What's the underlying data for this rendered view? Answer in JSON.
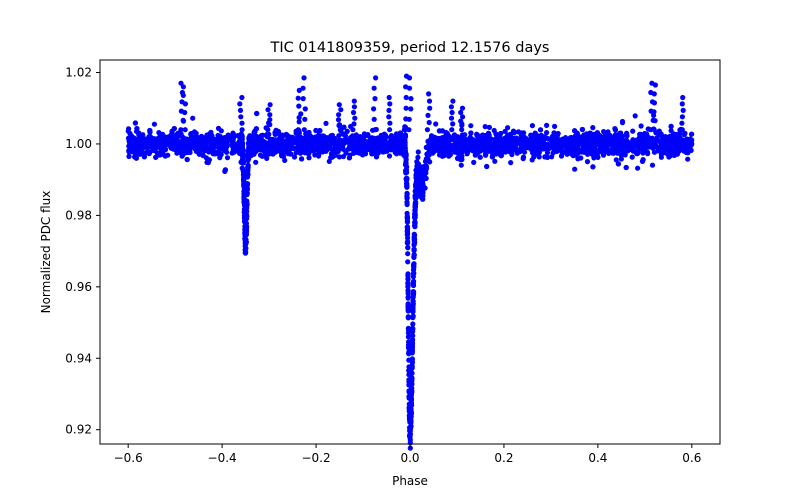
{
  "chart_data": {
    "type": "scatter",
    "title": "TIC 0141809359, period 12.1576 days",
    "xlabel": "Phase",
    "ylabel": "Normalized PDC flux",
    "xlim": [
      -0.66,
      0.66
    ],
    "ylim": [
      0.916,
      1.0235
    ],
    "xticks": [
      -0.6,
      -0.4,
      -0.2,
      0.0,
      0.2,
      0.4,
      0.6
    ],
    "xtick_labels": [
      "−0.6",
      "−0.4",
      "−0.2",
      "0.0",
      "0.2",
      "0.4",
      "0.6"
    ],
    "yticks": [
      0.92,
      0.94,
      0.96,
      0.98,
      1.0,
      1.02
    ],
    "ytick_labels": [
      "0.92",
      "0.94",
      "0.96",
      "0.98",
      "1.00",
      "1.02"
    ],
    "grid": false,
    "marker_color": "#0000ff",
    "series": [
      {
        "name": "baseline",
        "description": "dense out-of-eclipse band",
        "x_range": [
          -0.6,
          0.6
        ],
        "center": 1.0,
        "spread": 0.005
      },
      {
        "name": "secondary eclipse",
        "phase_center": -0.35,
        "minimum": 0.972
      },
      {
        "name": "primary eclipse",
        "phase_center": 0.0,
        "minimum": 0.9195
      },
      {
        "name": "flares",
        "points": [
          [
            -0.485,
            1.017
          ],
          [
            -0.48,
            1.016
          ],
          [
            -0.36,
            1.013
          ],
          [
            -0.3,
            1.011
          ],
          [
            -0.235,
            1.015
          ],
          [
            -0.225,
            1.0185
          ],
          [
            -0.15,
            1.011
          ],
          [
            -0.12,
            1.012
          ],
          [
            -0.075,
            1.0185
          ],
          [
            -0.045,
            1.013
          ],
          [
            -0.01,
            1.019
          ],
          [
            0.0,
            1.0185
          ],
          [
            0.04,
            1.014
          ],
          [
            0.09,
            1.012
          ],
          [
            0.11,
            1.01
          ],
          [
            0.515,
            1.017
          ],
          [
            0.52,
            1.0165
          ],
          [
            0.58,
            1.013
          ]
        ]
      }
    ]
  }
}
